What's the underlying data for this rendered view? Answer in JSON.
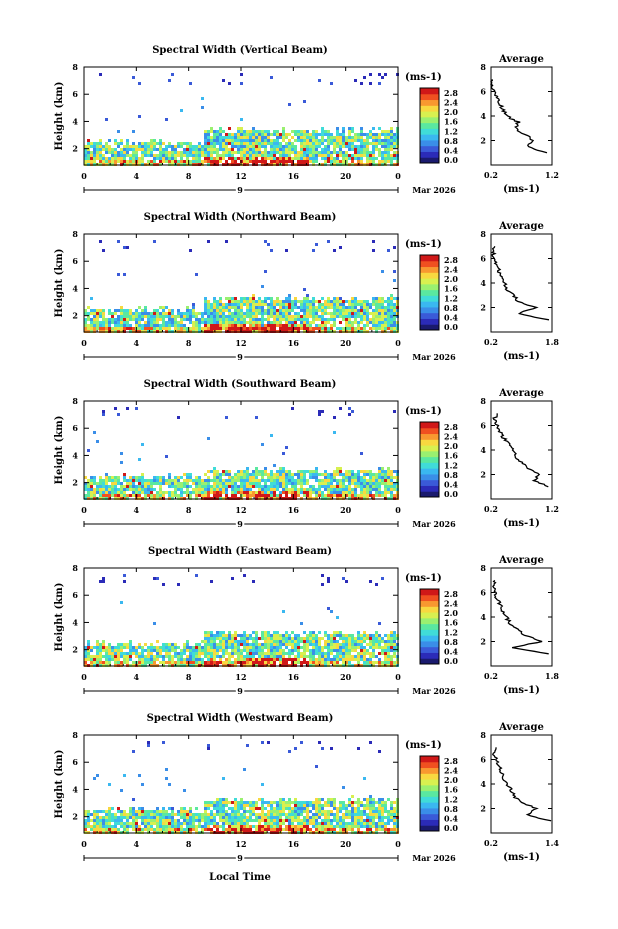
{
  "chart_data": [
    {
      "type": "heatmap",
      "title": "Spectral Width (Vertical Beam)",
      "ylabel": "Height (km)",
      "yticks": [
        "2",
        "4",
        "6",
        "8"
      ],
      "xticks": [
        "0",
        "4",
        "8",
        "12",
        "16",
        "20",
        "0"
      ],
      "ylim": [
        0.8,
        8
      ],
      "xlim": [
        0,
        24
      ],
      "day_label": "9",
      "date_label": "Mar 2026",
      "colorbar_unit": "(ms-1)",
      "colorbar_ticks": [
        "0.0",
        "0.4",
        "0.8",
        "1.2",
        "1.6",
        "2.0",
        "2.4",
        "2.8"
      ],
      "avg_title": "Average",
      "avg_xticks": [
        "0.2",
        "1.2"
      ],
      "avg_xlim": [
        0.2,
        1.2
      ],
      "avg_ylim": [
        0,
        8
      ],
      "avg_yticks": [
        "2",
        "4",
        "6",
        "8"
      ],
      "avg_xlabel": "(ms-1)",
      "avg_profile": {
        "height": [
          1.0,
          1.5,
          2.0,
          2.5,
          3.0,
          3.5,
          4.0,
          4.5,
          5.0,
          5.5,
          6.0,
          6.5,
          7.0
        ],
        "value": [
          1.1,
          0.8,
          0.9,
          0.75,
          0.6,
          0.65,
          0.45,
          0.4,
          0.35,
          0.3,
          0.25,
          0.2,
          0.22
        ]
      },
      "scene": {
        "top": 3.5,
        "noise_top": 7.6
      }
    },
    {
      "type": "heatmap",
      "title": "Spectral Width (Northward Beam)",
      "ylabel": "Height (km)",
      "yticks": [
        "2",
        "4",
        "6",
        "8"
      ],
      "xticks": [
        "0",
        "4",
        "8",
        "12",
        "16",
        "20",
        "0"
      ],
      "ylim": [
        0.8,
        8
      ],
      "xlim": [
        0,
        24
      ],
      "day_label": "9",
      "date_label": "Mar 2026",
      "colorbar_unit": "(ms-1)",
      "colorbar_ticks": [
        "0.0",
        "0.4",
        "0.8",
        "1.2",
        "1.6",
        "2.0",
        "2.4",
        "2.8"
      ],
      "avg_title": "Average",
      "avg_xticks": [
        "0.2",
        "1.8"
      ],
      "avg_xlim": [
        0.2,
        1.8
      ],
      "avg_ylim": [
        0,
        8
      ],
      "avg_yticks": [
        "2",
        "4",
        "6",
        "8"
      ],
      "avg_xlabel": "(ms-1)",
      "avg_profile": {
        "height": [
          1.0,
          1.5,
          2.0,
          2.5,
          3.0,
          3.5,
          4.0,
          4.5,
          5.0,
          5.5,
          6.0,
          6.5,
          7.0
        ],
        "value": [
          1.7,
          0.9,
          1.4,
          0.9,
          0.8,
          0.6,
          0.55,
          0.45,
          0.4,
          0.35,
          0.3,
          0.25,
          0.3
        ]
      },
      "scene": {
        "top": 3.4,
        "noise_top": 7.6
      }
    },
    {
      "type": "heatmap",
      "title": "Spectral Width (Southward Beam)",
      "ylabel": "Height (km)",
      "yticks": [
        "2",
        "4",
        "6",
        "8"
      ],
      "xticks": [
        "0",
        "4",
        "8",
        "12",
        "16",
        "20",
        "0"
      ],
      "ylim": [
        0.8,
        8
      ],
      "xlim": [
        0,
        24
      ],
      "day_label": "9",
      "date_label": "Mar 2026",
      "colorbar_unit": "(ms-1)",
      "colorbar_ticks": [
        "0.0",
        "0.4",
        "0.8",
        "1.2",
        "1.6",
        "2.0",
        "2.4",
        "2.8"
      ],
      "avg_title": "Average",
      "avg_xticks": [
        "0.2",
        "1.2"
      ],
      "avg_xlim": [
        0.2,
        1.2
      ],
      "avg_ylim": [
        0,
        8
      ],
      "avg_yticks": [
        "2",
        "4",
        "6",
        "8"
      ],
      "avg_xlabel": "(ms-1)",
      "avg_profile": {
        "height": [
          1.0,
          1.5,
          2.0,
          2.5,
          3.0,
          3.5,
          4.0,
          4.5,
          5.0,
          5.5,
          6.0,
          6.5,
          7.0
        ],
        "value": [
          1.15,
          0.9,
          1.0,
          0.8,
          0.7,
          0.6,
          0.55,
          0.5,
          0.4,
          0.35,
          0.3,
          0.25,
          0.3
        ]
      },
      "scene": {
        "top": 3.0,
        "noise_top": 7.6
      }
    },
    {
      "type": "heatmap",
      "title": "Spectral Width (Eastward Beam)",
      "ylabel": "Height (km)",
      "yticks": [
        "2",
        "4",
        "6",
        "8"
      ],
      "xticks": [
        "0",
        "4",
        "8",
        "12",
        "16",
        "20",
        "0"
      ],
      "ylim": [
        0.8,
        8
      ],
      "xlim": [
        0,
        24
      ],
      "day_label": "9",
      "date_label": "Mar 2026",
      "colorbar_unit": "(ms-1)",
      "colorbar_ticks": [
        "0.0",
        "0.4",
        "0.8",
        "1.2",
        "1.6",
        "2.0",
        "2.4",
        "2.8"
      ],
      "avg_title": "Average",
      "avg_xticks": [
        "0.2",
        "1.8"
      ],
      "avg_xlim": [
        0.2,
        1.8
      ],
      "avg_ylim": [
        0,
        8
      ],
      "avg_yticks": [
        "2",
        "4",
        "6",
        "8"
      ],
      "avg_xlabel": "(ms-1)",
      "avg_profile": {
        "height": [
          1.0,
          1.5,
          2.0,
          2.5,
          3.0,
          3.5,
          4.0,
          4.5,
          5.0,
          5.5,
          6.0,
          6.5,
          7.0
        ],
        "value": [
          1.7,
          0.8,
          1.5,
          1.1,
          0.9,
          0.7,
          0.6,
          0.5,
          0.45,
          0.35,
          0.3,
          0.25,
          0.3
        ]
      },
      "scene": {
        "top": 3.4,
        "noise_top": 7.6
      }
    },
    {
      "type": "heatmap",
      "title": "Spectral Width (Westward Beam)",
      "ylabel": "Height (km)",
      "yticks": [
        "2",
        "4",
        "6",
        "8"
      ],
      "xticks": [
        "0",
        "4",
        "8",
        "12",
        "16",
        "20",
        "0"
      ],
      "ylim": [
        0.8,
        8
      ],
      "xlim": [
        0,
        24
      ],
      "day_label": "9",
      "date_label": "Mar 2026",
      "colorbar_unit": "(ms-1)",
      "colorbar_ticks": [
        "0.0",
        "0.4",
        "0.8",
        "1.2",
        "1.6",
        "2.0",
        "2.4",
        "2.8"
      ],
      "avg_title": "Average",
      "avg_xticks": [
        "0.2",
        "1.4"
      ],
      "avg_xlim": [
        0.2,
        1.4
      ],
      "avg_ylim": [
        0,
        8
      ],
      "avg_yticks": [
        "2",
        "4",
        "6",
        "8"
      ],
      "avg_xlabel": "(ms-1)",
      "avg_profile": {
        "height": [
          1.0,
          1.5,
          2.0,
          2.5,
          3.0,
          3.5,
          4.0,
          4.5,
          5.0,
          5.5,
          6.0,
          6.5,
          7.0
        ],
        "value": [
          1.35,
          0.9,
          1.1,
          0.8,
          0.65,
          0.6,
          0.5,
          0.45,
          0.4,
          0.35,
          0.3,
          0.25,
          0.3
        ]
      },
      "scene": {
        "top": 3.4,
        "noise_top": 7.6
      }
    }
  ],
  "footer": {
    "xlabel": "Local Time"
  },
  "colormap": [
    "#1a1a6e",
    "#2b2bb8",
    "#3a5ad8",
    "#3a8ee8",
    "#3ab8f0",
    "#40dcd8",
    "#5ae8a0",
    "#9af070",
    "#d8f050",
    "#f8d840",
    "#f89830",
    "#f05020",
    "#d01818"
  ]
}
